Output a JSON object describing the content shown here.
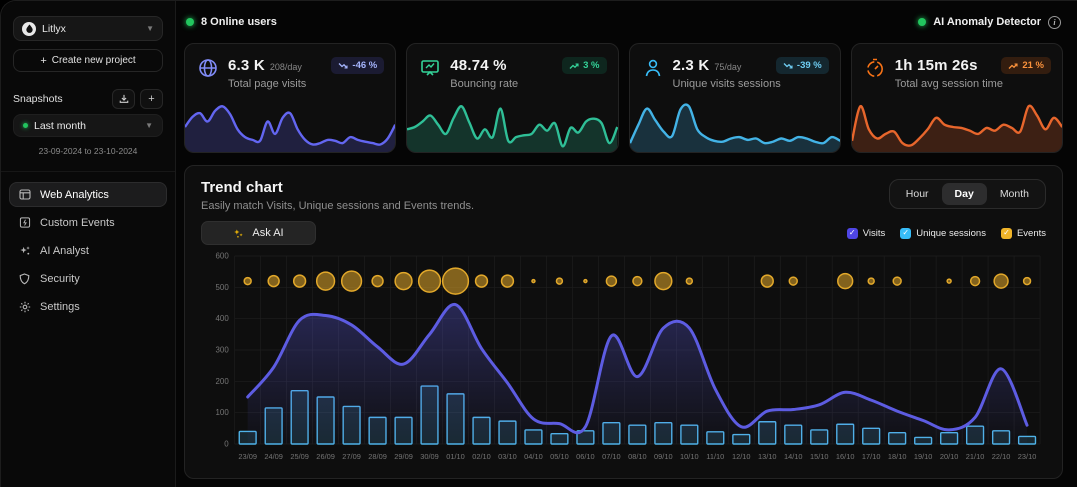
{
  "sidebar": {
    "project_name": "Litlyx",
    "create_project": "Create new project",
    "snapshots_label": "Snapshots",
    "snapshot_selected": "Last month",
    "snapshot_range": "23-09-2024 to 23-10-2024",
    "nav": [
      {
        "label": "Web Analytics",
        "icon": "browser-window-icon",
        "active": true
      },
      {
        "label": "Custom Events",
        "icon": "bolt-square-icon",
        "active": false
      },
      {
        "label": "AI Analyst",
        "icon": "sparkles-icon",
        "active": false
      },
      {
        "label": "Security",
        "icon": "shield-icon",
        "active": false
      },
      {
        "label": "Settings",
        "icon": "gear-icon",
        "active": false
      }
    ]
  },
  "topbar": {
    "online_users": "8 Online users",
    "anomaly_label": "AI Anomaly Detector"
  },
  "stat_cards": [
    {
      "icon": "globe-icon",
      "value": "6.3 K",
      "rate": "208/day",
      "label": "Total page visits",
      "badge": "-46 %",
      "trend": "down",
      "accent": "#6366f1"
    },
    {
      "icon": "presentation-chart-icon",
      "value": "48.74 %",
      "rate": "",
      "label": "Bouncing rate",
      "badge": "3 %",
      "trend": "up",
      "accent": "#2fbf97"
    },
    {
      "icon": "user-icon",
      "value": "2.3 K",
      "rate": "75/day",
      "label": "Unique visits sessions",
      "badge": "-39 %",
      "trend": "down",
      "accent": "#43b3e6"
    },
    {
      "icon": "timer-icon",
      "value": "1h 15m 26s",
      "rate": "",
      "label": "Total avg session time",
      "badge": "21 %",
      "trend": "up",
      "accent": "#e8662c"
    }
  ],
  "trend": {
    "title": "Trend chart",
    "subtitle": "Easily match Visits, Unique sessions and Events trends.",
    "ask_ai_label": "Ask AI",
    "range_tabs": [
      "Hour",
      "Day",
      "Month"
    ],
    "active_tab": "Day",
    "legend": [
      {
        "label": "Visits",
        "color": "#4f46e5"
      },
      {
        "label": "Unique sessions",
        "color": "#38bdf8"
      },
      {
        "label": "Events",
        "color": "#f0b429"
      }
    ]
  },
  "colors": {
    "online_dot": "#22c55e",
    "visits_line": "#5d5ce2",
    "sessions_bar": "#4fb3e8",
    "events_bubble": "#e2a82a",
    "grid": "#1e1e1e",
    "axis_text": "#757575"
  },
  "chart_data": [
    {
      "type": "line+bar+bubble",
      "title": "Trend chart",
      "categories": [
        "23/09",
        "24/09",
        "25/09",
        "26/09",
        "27/09",
        "28/09",
        "29/09",
        "30/09",
        "01/10",
        "02/10",
        "03/10",
        "04/10",
        "05/10",
        "06/10",
        "07/10",
        "08/10",
        "09/10",
        "10/10",
        "11/10",
        "12/10",
        "13/10",
        "14/10",
        "15/10",
        "16/10",
        "17/10",
        "18/10",
        "19/10",
        "20/10",
        "21/10",
        "22/10",
        "23/10"
      ],
      "ylim": [
        0,
        600
      ],
      "yticks": [
        0,
        100,
        200,
        300,
        400,
        500,
        600
      ],
      "grid": true,
      "series": [
        {
          "name": "Visits",
          "type": "area-line",
          "color": "#5d5ce2",
          "values": [
            150,
            245,
            395,
            410,
            380,
            310,
            255,
            350,
            445,
            305,
            195,
            80,
            65,
            55,
            345,
            215,
            370,
            370,
            175,
            55,
            105,
            110,
            125,
            165,
            140,
            105,
            75,
            45,
            85,
            240,
            60
          ]
        },
        {
          "name": "Unique sessions",
          "type": "bar",
          "color": "#4fb3e8",
          "values": [
            40,
            115,
            170,
            150,
            120,
            85,
            85,
            185,
            160,
            85,
            73,
            45,
            33,
            42,
            68,
            60,
            68,
            60,
            39,
            30,
            71,
            60,
            45,
            63,
            50,
            36,
            21,
            36,
            57,
            42,
            24
          ]
        },
        {
          "name": "Events",
          "type": "bubble",
          "color": "#e2a82a",
          "y_level": 520,
          "radii": [
            3.5,
            5.5,
            6,
            9,
            10,
            5.5,
            8.5,
            11,
            13,
            6,
            6,
            1.5,
            3,
            1.5,
            5,
            4.5,
            8.5,
            3,
            0,
            0,
            6,
            4,
            0,
            7.5,
            3,
            4,
            0,
            2,
            4.5,
            7,
            3.5
          ]
        }
      ]
    },
    {
      "type": "area",
      "name": "total-page-visits-sparkline",
      "color": "#6366f1",
      "values": [
        50,
        72,
        80,
        62,
        85,
        95,
        78,
        45,
        28,
        22,
        20,
        62,
        35,
        70,
        80,
        45,
        22,
        12,
        15,
        22,
        20,
        15,
        28,
        22,
        18,
        15,
        12,
        25,
        55
      ]
    },
    {
      "type": "area",
      "name": "bouncing-rate-sparkline",
      "color": "#2fbf97",
      "values": [
        45,
        50,
        62,
        75,
        55,
        35,
        70,
        95,
        60,
        25,
        45,
        28,
        90,
        20,
        28,
        32,
        35,
        55,
        42,
        58,
        8,
        48,
        38,
        62,
        68,
        58,
        15,
        50
      ]
    },
    {
      "type": "area",
      "name": "unique-sessions-sparkline",
      "color": "#43b3e6",
      "values": [
        15,
        55,
        90,
        65,
        40,
        30,
        88,
        95,
        45,
        28,
        20,
        18,
        25,
        28,
        22,
        25,
        15,
        18,
        25,
        20,
        28,
        25,
        18,
        15,
        28,
        20
      ]
    },
    {
      "type": "area",
      "name": "avg-session-time-sparkline",
      "color": "#e8662c",
      "values": [
        20,
        95,
        45,
        25,
        35,
        40,
        15,
        10,
        25,
        45,
        70,
        55,
        50,
        48,
        42,
        35,
        48,
        42,
        55,
        48,
        40,
        95,
        75,
        45,
        70,
        50
      ]
    }
  ]
}
